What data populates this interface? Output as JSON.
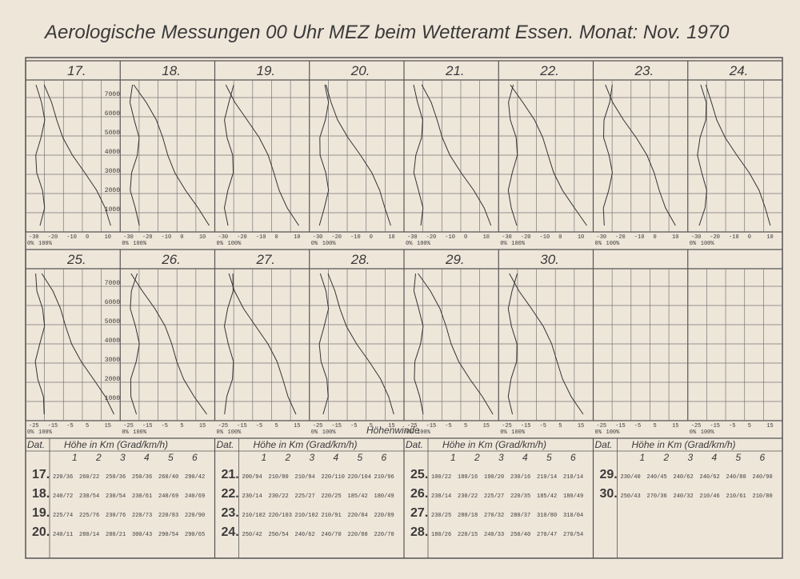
{
  "title": "Aerologische Messungen 00 Uhr MEZ beim Wetteramt Essen. Monat: Nov. 1970",
  "days_row1": [
    "17.",
    "18.",
    "19.",
    "20.",
    "21.",
    "22.",
    "23.",
    "24."
  ],
  "days_row2": [
    "25.",
    "26.",
    "27.",
    "28.",
    "29.",
    "30."
  ],
  "altitudes": [
    "1000",
    "2000",
    "3000",
    "4000",
    "5000",
    "6000",
    "7000"
  ],
  "temp_labels_row1": [
    "-30",
    "-20",
    "-10",
    "0",
    "10"
  ],
  "temp_labels_row2": [
    "-25",
    "-15",
    "-5",
    "5",
    "15"
  ],
  "humidity_labels": [
    "0%",
    "100%"
  ],
  "winds_heading": "Höhenwinde",
  "table": {
    "date_header": "Dat.",
    "height_header": "Höhe in Km (Grad/km/h)",
    "levels": [
      "1",
      "2",
      "3",
      "4",
      "5",
      "6"
    ],
    "rows": [
      {
        "date": "17.",
        "values": [
          "220/36",
          "260/22",
          "250/36",
          "250/36",
          "260/40",
          "290/42"
        ]
      },
      {
        "date": "18.",
        "values": [
          "240/72",
          "230/54",
          "230/54",
          "230/61",
          "240/69",
          "240/69"
        ]
      },
      {
        "date": "19.",
        "values": [
          "225/74",
          "225/76",
          "230/76",
          "220/73",
          "220/83",
          "220/90"
        ]
      },
      {
        "date": "20.",
        "values": [
          "240/11",
          "280/14",
          "280/21",
          "300/43",
          "290/54",
          "290/65"
        ]
      },
      {
        "date": "21.",
        "values": [
          "200/94",
          "210/80",
          "210/94",
          "220/110",
          "220/104",
          "210/96"
        ]
      },
      {
        "date": "22.",
        "values": [
          "230/14",
          "230/22",
          "225/27",
          "220/25",
          "185/42",
          "180/49"
        ]
      },
      {
        "date": "23.",
        "values": [
          "210/102",
          "220/103",
          "210/102",
          "210/91",
          "220/84",
          "220/89"
        ]
      },
      {
        "date": "24.",
        "values": [
          "250/42",
          "250/54",
          "240/62",
          "240/70",
          "220/80",
          "220/70"
        ]
      },
      {
        "date": "25.",
        "values": [
          "100/22",
          "180/16",
          "190/20",
          "230/16",
          "210/14",
          "210/14"
        ]
      },
      {
        "date": "26.",
        "values": [
          "238/14",
          "230/22",
          "225/27",
          "220/35",
          "185/42",
          "180/49"
        ]
      },
      {
        "date": "27.",
        "values": [
          "230/25",
          "280/18",
          "270/32",
          "280/37",
          "310/80",
          "310/04"
        ]
      },
      {
        "date": "28.",
        "values": [
          "180/26",
          "220/15",
          "240/33",
          "250/40",
          "270/47",
          "270/54"
        ]
      },
      {
        "date": "29.",
        "values": [
          "230/40",
          "240/45",
          "240/62",
          "240/62",
          "240/80",
          "240/90"
        ]
      },
      {
        "date": "30.",
        "values": [
          "250/43",
          "270/36",
          "240/32",
          "210/46",
          "210/61",
          "210/80"
        ]
      }
    ]
  }
}
